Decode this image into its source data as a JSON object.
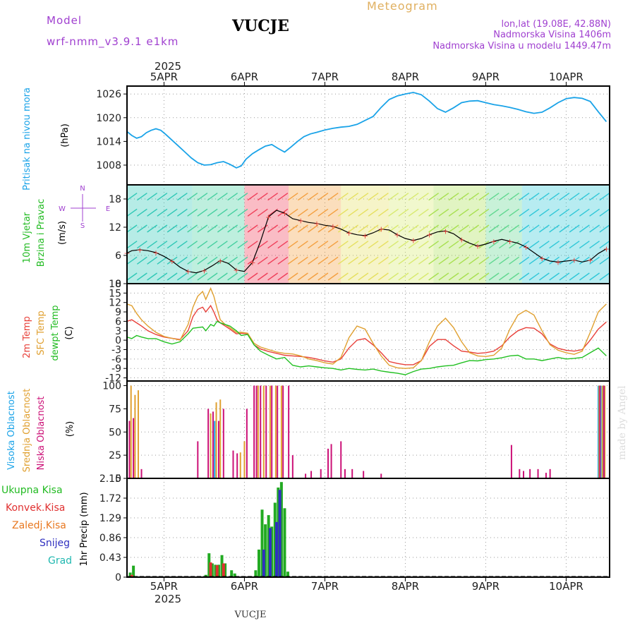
{
  "header": {
    "model_label": "Model",
    "model_name": "wrf-nmm_v3.9.1  e1km",
    "station": "VUCJE",
    "meteogram": "Meteogram",
    "lonlat": "lon,lat (19.08E, 42.88N)",
    "altitude": "Nadmorska Visina 1406m",
    "model_altitude": "Nadmorska Visina u modelu 1449.47m",
    "footer_station": "VUCJE",
    "credit": "made by Angel"
  },
  "colors": {
    "pressure": "#1aa3e8",
    "t2m": "#e8403a",
    "sfc": "#e0a030",
    "dew": "#22c022",
    "cloud_high": "#1aa3e8",
    "cloud_mid": "#e0a030",
    "cloud_low": "#cc1177",
    "precip_total": "#22aa22",
    "precip_conv": "#e03030",
    "precip_frz": "#e87820",
    "snow": "#3030c0",
    "grad": "#20b8b0",
    "title_purple": "#a040d0",
    "title_orange": "#e0b060"
  },
  "chart_data": [
    {
      "type": "line",
      "panel": "pressure",
      "title": "",
      "ylabel": [
        "Pritisak na nivou mora",
        "(hPa)"
      ],
      "year_label": "2025",
      "x_day_labels": [
        "5APR",
        "6APR",
        "7APR",
        "8APR",
        "9APR",
        "10APR"
      ],
      "x_day_positions": [
        5,
        6,
        7,
        8,
        9,
        10
      ],
      "xlim": [
        4.54,
        10.54
      ],
      "ylim": [
        1003,
        1028
      ],
      "yticks": [
        "1008",
        "1014",
        "1020",
        "1026"
      ],
      "series": [
        {
          "name": "",
          "x": [
            4.54,
            4.6,
            4.66,
            4.72,
            4.78,
            4.84,
            4.9,
            4.96,
            5.02,
            5.1,
            5.18,
            5.26,
            5.34,
            5.42,
            5.5,
            5.58,
            5.66,
            5.74,
            5.82,
            5.9,
            5.96,
            6.02,
            6.1,
            6.18,
            6.26,
            6.34,
            6.42,
            6.5,
            6.58,
            6.66,
            6.74,
            6.82,
            6.9,
            7.0,
            7.1,
            7.2,
            7.3,
            7.4,
            7.5,
            7.6,
            7.7,
            7.8,
            7.9,
            8.0,
            8.1,
            8.2,
            8.3,
            8.4,
            8.5,
            8.6,
            8.7,
            8.8,
            8.9,
            9.0,
            9.1,
            9.2,
            9.3,
            9.4,
            9.5,
            9.6,
            9.7,
            9.8,
            9.9,
            10.0,
            10.1,
            10.2,
            10.3,
            10.4,
            10.5
          ],
          "values": [
            1016.5,
            1015.5,
            1014.8,
            1015.2,
            1016.2,
            1016.8,
            1017.2,
            1016.8,
            1015.8,
            1014.3,
            1012.8,
            1011.3,
            1009.8,
            1008.6,
            1008.0,
            1008.1,
            1008.6,
            1008.9,
            1008.2,
            1007.3,
            1007.8,
            1009.5,
            1010.9,
            1011.9,
            1012.8,
            1013.2,
            1012.2,
            1011.3,
            1012.6,
            1014.0,
            1015.2,
            1015.9,
            1016.3,
            1016.9,
            1017.3,
            1017.6,
            1017.8,
            1018.3,
            1019.3,
            1020.3,
            1022.6,
            1024.6,
            1025.5,
            1026.0,
            1026.4,
            1025.8,
            1024.2,
            1022.3,
            1021.4,
            1022.5,
            1023.8,
            1024.2,
            1024.3,
            1023.8,
            1023.3,
            1023.0,
            1022.6,
            1022.1,
            1021.5,
            1021.1,
            1021.4,
            1022.5,
            1023.8,
            1024.8,
            1025.1,
            1024.9,
            1024.1,
            1021.5,
            1019.0
          ]
        }
      ]
    },
    {
      "type": "line",
      "panel": "wind",
      "title": "",
      "ylabel": [
        "10m Vjetar",
        "Brzina i Pravac",
        "(m/s)"
      ],
      "compass": {
        "n": "N",
        "w": "W",
        "e": "E",
        "s": "S"
      },
      "xlim": [
        4.54,
        10.54
      ],
      "ylim": [
        0,
        21
      ],
      "yticks": [
        "0",
        "6",
        "12",
        "18"
      ],
      "series": [
        {
          "name": "",
          "x": [
            4.54,
            4.6,
            4.7,
            4.8,
            4.9,
            5.0,
            5.1,
            5.2,
            5.3,
            5.4,
            5.5,
            5.6,
            5.7,
            5.8,
            5.9,
            6.0,
            6.1,
            6.2,
            6.3,
            6.4,
            6.5,
            6.6,
            6.7,
            6.8,
            6.9,
            7.0,
            7.1,
            7.2,
            7.3,
            7.4,
            7.5,
            7.6,
            7.7,
            7.8,
            7.9,
            8.0,
            8.1,
            8.2,
            8.3,
            8.4,
            8.5,
            8.6,
            8.7,
            8.8,
            8.9,
            9.0,
            9.1,
            9.2,
            9.3,
            9.4,
            9.5,
            9.6,
            9.7,
            9.8,
            9.9,
            10.0,
            10.1,
            10.2,
            10.3,
            10.4,
            10.5
          ],
          "values": [
            6.5,
            7.0,
            7.2,
            7.0,
            6.6,
            5.8,
            4.8,
            3.5,
            2.6,
            2.3,
            2.8,
            3.8,
            4.9,
            4.3,
            2.9,
            2.6,
            4.5,
            9.0,
            14.2,
            15.6,
            15.0,
            13.8,
            13.4,
            13.0,
            12.8,
            12.4,
            12.2,
            11.6,
            10.8,
            10.4,
            10.2,
            10.8,
            11.6,
            11.4,
            10.4,
            9.6,
            9.2,
            9.6,
            10.4,
            11.0,
            11.2,
            10.6,
            9.4,
            8.6,
            8.0,
            8.4,
            9.0,
            9.4,
            9.0,
            8.6,
            7.8,
            6.6,
            5.4,
            4.8,
            4.6,
            4.8,
            5.0,
            4.6,
            5.0,
            6.4,
            7.4
          ]
        }
      ]
    },
    {
      "type": "line",
      "panel": "temperature",
      "title": "",
      "ylabel": [
        "2m Temp",
        "SFC Temp",
        "dewpt Temp",
        "(C)"
      ],
      "xlim": [
        4.54,
        10.54
      ],
      "ylim": [
        -13,
        18
      ],
      "yticks": [
        "-12",
        "-9",
        "-6",
        "-3",
        "0",
        "3",
        "6",
        "9",
        "12",
        "15",
        "18"
      ],
      "x": [
        4.54,
        4.6,
        4.66,
        4.72,
        4.8,
        4.9,
        5.0,
        5.1,
        5.2,
        5.3,
        5.36,
        5.42,
        5.48,
        5.52,
        5.58,
        5.62,
        5.66,
        5.7,
        5.76,
        5.82,
        5.9,
        5.96,
        6.04,
        6.12,
        6.2,
        6.3,
        6.4,
        6.5,
        6.6,
        6.7,
        6.8,
        6.9,
        7.0,
        7.1,
        7.2,
        7.3,
        7.4,
        7.5,
        7.6,
        7.7,
        7.8,
        7.9,
        8.0,
        8.1,
        8.2,
        8.3,
        8.4,
        8.5,
        8.6,
        8.7,
        8.8,
        8.9,
        9.0,
        9.1,
        9.2,
        9.3,
        9.4,
        9.5,
        9.6,
        9.7,
        9.8,
        9.9,
        10.0,
        10.1,
        10.2,
        10.3,
        10.4,
        10.5
      ],
      "series": [
        {
          "name": "2m Temp",
          "values": [
            6.0,
            6.5,
            5.5,
            4.5,
            3.0,
            1.8,
            1.0,
            0.6,
            0.2,
            3.0,
            7.5,
            9.8,
            10.5,
            9.0,
            11.0,
            9.0,
            6.5,
            5.5,
            4.5,
            3.5,
            2.0,
            2.2,
            2.0,
            -1.5,
            -2.8,
            -3.6,
            -4.2,
            -4.8,
            -5.0,
            -5.2,
            -5.5,
            -6.0,
            -6.6,
            -7.0,
            -6.0,
            -2.5,
            0.0,
            0.5,
            -1.5,
            -4.0,
            -6.8,
            -7.4,
            -7.8,
            -7.8,
            -6.5,
            -2.0,
            0.2,
            0.2,
            -1.8,
            -3.5,
            -3.8,
            -4.2,
            -4.0,
            -3.5,
            -1.8,
            1.0,
            3.0,
            4.0,
            3.8,
            2.0,
            -1.2,
            -2.6,
            -3.2,
            -3.5,
            -3.0,
            0.0,
            3.5,
            5.8
          ]
        },
        {
          "name": "SFC Temp",
          "values": [
            11.5,
            11.0,
            8.5,
            6.5,
            4.5,
            2.5,
            1.2,
            0.6,
            0.0,
            5.0,
            10.5,
            14.0,
            15.5,
            13.0,
            16.5,
            14.0,
            10.0,
            6.5,
            5.0,
            4.0,
            2.5,
            2.5,
            2.2,
            -1.0,
            -2.2,
            -3.0,
            -3.8,
            -4.2,
            -4.4,
            -5.0,
            -6.0,
            -6.5,
            -7.2,
            -7.6,
            -5.5,
            0.8,
            4.5,
            3.5,
            -1.0,
            -5.0,
            -8.0,
            -8.8,
            -9.0,
            -8.8,
            -6.5,
            -0.5,
            4.5,
            7.0,
            4.0,
            -0.5,
            -4.0,
            -5.0,
            -5.2,
            -4.8,
            -2.5,
            3.5,
            8.0,
            9.5,
            8.0,
            3.0,
            -1.5,
            -3.2,
            -4.0,
            -4.5,
            -3.5,
            2.5,
            9.0,
            11.5
          ]
        },
        {
          "name": "dewpt Temp",
          "values": [
            1.0,
            0.5,
            1.5,
            1.0,
            0.5,
            0.5,
            -0.5,
            -1.2,
            -0.5,
            2.0,
            3.8,
            4.0,
            4.2,
            3.0,
            5.0,
            4.5,
            6.0,
            5.5,
            5.0,
            4.5,
            3.0,
            1.5,
            1.8,
            -1.5,
            -3.5,
            -4.8,
            -6.0,
            -5.5,
            -8.0,
            -8.5,
            -8.2,
            -8.5,
            -8.8,
            -9.0,
            -9.5,
            -9.0,
            -9.3,
            -9.5,
            -9.2,
            -9.8,
            -10.2,
            -10.5,
            -11.0,
            -10.0,
            -9.2,
            -9.0,
            -8.5,
            -8.2,
            -8.0,
            -7.2,
            -6.5,
            -6.6,
            -6.2,
            -6.0,
            -5.6,
            -5.0,
            -4.8,
            -6.0,
            -6.0,
            -6.5,
            -6.0,
            -5.5,
            -6.0,
            -5.8,
            -5.5,
            -4.0,
            -2.5,
            -5.0
          ]
        }
      ]
    },
    {
      "type": "bar",
      "panel": "cloud",
      "title": "",
      "ylabel": [
        "Visoka Oblacnost",
        "Srednja Oblacnost",
        "Niska Oblacnost",
        "(%)"
      ],
      "xlim": [
        4.54,
        10.54
      ],
      "ylim": [
        0,
        105
      ],
      "yticks": [
        "0",
        "25",
        "50",
        "75",
        "100"
      ],
      "series": [
        {
          "name": "Visoka Oblacnost",
          "x": [
            5.63,
            10.4,
            10.43,
            10.46
          ],
          "values": [
            62,
            100,
            100,
            100
          ]
        },
        {
          "name": "Srednja Oblacnost",
          "x": [
            4.59,
            4.64,
            4.68,
            5.58,
            5.65,
            5.7,
            5.95,
            6.0,
            6.17,
            6.24,
            6.32,
            6.39,
            6.46,
            10.41,
            10.45,
            10.48
          ],
          "values": [
            100,
            90,
            95,
            70,
            82,
            85,
            28,
            40,
            100,
            100,
            100,
            100,
            100,
            100,
            100,
            100
          ]
        },
        {
          "name": "Niska Oblacnost",
          "x": [
            4.57,
            4.62,
            4.72,
            5.42,
            5.55,
            5.61,
            5.68,
            5.74,
            5.86,
            5.91,
            6.03,
            6.12,
            6.15,
            6.2,
            6.27,
            6.34,
            6.41,
            6.48,
            6.55,
            6.6,
            6.76,
            6.83,
            6.95,
            7.04,
            7.08,
            7.2,
            7.25,
            7.34,
            7.48,
            7.7,
            9.32,
            9.42,
            9.47,
            9.55,
            9.65,
            9.75,
            9.8,
            10.42,
            10.47
          ],
          "values": [
            62,
            65,
            10,
            40,
            75,
            72,
            62,
            75,
            30,
            27,
            75,
            100,
            100,
            100,
            100,
            100,
            100,
            100,
            100,
            25,
            5,
            8,
            10,
            32,
            37,
            40,
            10,
            10,
            8,
            5,
            36,
            10,
            8,
            10,
            10,
            6,
            10,
            100,
            100
          ]
        }
      ]
    },
    {
      "type": "bar",
      "panel": "precip",
      "title": "",
      "ylabel": [
        "1hr Precip (mm)"
      ],
      "legend": [
        "Ukupna Kisa",
        "Konvek.Kisa",
        "Zaledj.Kisa",
        "Snijeg",
        "Grad"
      ],
      "year_label": "2025",
      "x_day_labels": [
        "5APR",
        "6APR",
        "7APR",
        "8APR",
        "9APR",
        "10APR"
      ],
      "x_day_positions": [
        5,
        6,
        7,
        8,
        9,
        10
      ],
      "xlim": [
        4.54,
        10.54
      ],
      "ylim": [
        0,
        2.15
      ],
      "yticks": [
        "0",
        "0.43",
        "0.86",
        "1.29",
        "1.72",
        "2.15"
      ],
      "series": [
        {
          "name": "Ukupna Kisa",
          "x": [
            4.58,
            4.62,
            5.52,
            5.56,
            5.6,
            5.64,
            5.68,
            5.72,
            5.76,
            5.84,
            5.88,
            6.14,
            6.18,
            6.22,
            6.26,
            6.3,
            6.34,
            6.38,
            6.42,
            6.46,
            6.5,
            6.54
          ],
          "values": [
            0.1,
            0.25,
            0.05,
            0.52,
            0.3,
            0.27,
            0.27,
            0.48,
            0.3,
            0.15,
            0.08,
            0.15,
            0.6,
            1.47,
            1.15,
            1.35,
            1.1,
            1.62,
            1.95,
            2.07,
            1.5,
            0.12
          ]
        },
        {
          "name": "Konvek.Kisa",
          "x": [
            4.6,
            5.58,
            5.66,
            5.74
          ],
          "values": [
            0.05,
            0.32,
            0.26,
            0.3
          ]
        },
        {
          "name": "Snijeg",
          "x": [
            6.24,
            6.32,
            6.4,
            6.44
          ],
          "values": [
            0.6,
            1.07,
            1.2,
            1.9
          ]
        }
      ]
    }
  ]
}
